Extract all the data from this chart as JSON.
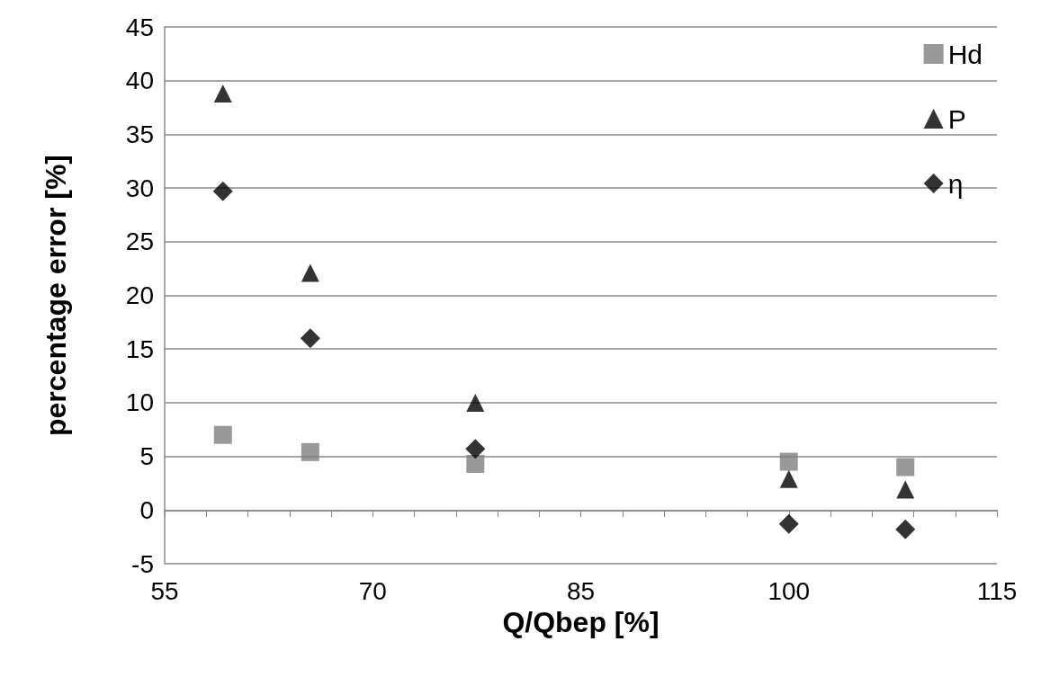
{
  "chart_data": {
    "type": "scatter",
    "xlabel": "Q/Qbep [%]",
    "ylabel": "percentage error [%]",
    "x": [
      59.2,
      65.5,
      77.4,
      100,
      108.4
    ],
    "series": [
      {
        "name": "Hd",
        "color": "#808080",
        "marker": "square",
        "values": [
          7.0,
          5.4,
          4.3,
          4.5,
          4.0
        ]
      },
      {
        "name": "P",
        "color": "#000000",
        "marker": "triangle",
        "values": [
          38.8,
          22.1,
          10.0,
          2.9,
          1.9
        ]
      },
      {
        "name": "η",
        "color": "#000000",
        "marker": "diamond",
        "values": [
          29.7,
          16.0,
          5.7,
          -1.3,
          -1.8
        ]
      }
    ],
    "xlim": [
      55,
      115
    ],
    "xticks": [
      55,
      {
        "value": 58,
        "label": null
      },
      {
        "value": 61,
        "label": null
      },
      {
        "value": 64,
        "label": null
      },
      {
        "value": 67,
        "label": null
      },
      70,
      {
        "value": 73,
        "label": null
      },
      {
        "value": 76,
        "label": null
      },
      {
        "value": 79,
        "label": null
      },
      {
        "value": 82,
        "label": null
      },
      85,
      {
        "value": 88,
        "label": null
      },
      {
        "value": 91,
        "label": null
      },
      {
        "value": 94,
        "label": null
      },
      {
        "value": 97,
        "label": null
      },
      100,
      {
        "value": 103,
        "label": null
      },
      {
        "value": 106,
        "label": null
      },
      {
        "value": 109,
        "label": null
      },
      {
        "value": 112,
        "label": null
      },
      115
    ],
    "ylim": [
      -5,
      45
    ],
    "yticks": [
      -5,
      0,
      5,
      10,
      15,
      20,
      25,
      30,
      35,
      40,
      45
    ],
    "grid": "y",
    "legend": "top right"
  }
}
